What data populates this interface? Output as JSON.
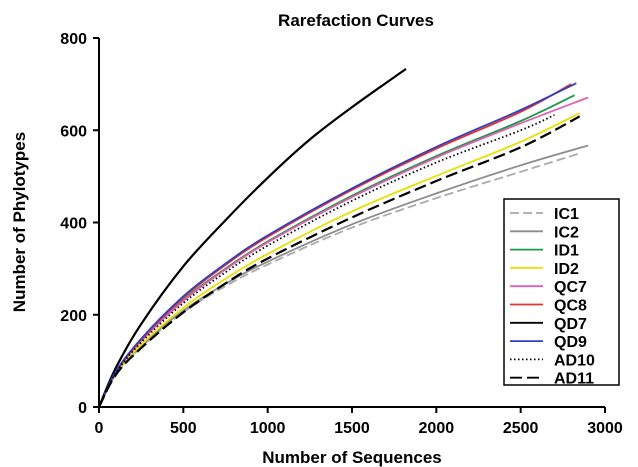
{
  "chart_data": {
    "type": "line",
    "title": "Rarefaction Curves",
    "xlabel": "Number of Sequences",
    "ylabel": "Number of Phylotypes",
    "xlim": [
      0,
      3000
    ],
    "ylim": [
      0,
      800
    ],
    "xticks": [
      0,
      500,
      1000,
      1500,
      2000,
      2500,
      3000
    ],
    "yticks": [
      0,
      200,
      400,
      600,
      800
    ],
    "grid": false,
    "legend": "right",
    "series": [
      {
        "name": "IC1",
        "color": "#aaaaaa",
        "dash": "dashed",
        "x": [
          0,
          100,
          250,
          500,
          750,
          1000,
          1500,
          2000,
          2500,
          2850
        ],
        "y": [
          0,
          70,
          130,
          205,
          262,
          309,
          389,
          453,
          510,
          550
        ]
      },
      {
        "name": "IC2",
        "color": "#8c8c8c",
        "dash": "solid",
        "x": [
          0,
          100,
          250,
          500,
          750,
          1000,
          1500,
          2000,
          2500,
          2900
        ],
        "y": [
          0,
          72,
          133,
          209,
          267,
          315,
          396,
          463,
          524,
          567
        ]
      },
      {
        "name": "ID1",
        "color": "#1a9a4a",
        "dash": "solid",
        "x": [
          0,
          100,
          250,
          500,
          750,
          1000,
          1500,
          2000,
          2500,
          2820
        ],
        "y": [
          0,
          75,
          143,
          232,
          300,
          359,
          458,
          544,
          620,
          676
        ]
      },
      {
        "name": "ID2",
        "color": "#e8e000",
        "dash": "solid",
        "x": [
          0,
          100,
          250,
          500,
          750,
          1000,
          1500,
          2000,
          2500,
          2850
        ],
        "y": [
          0,
          72,
          135,
          215,
          278,
          332,
          424,
          501,
          575,
          637
        ]
      },
      {
        "name": "QC7",
        "color": "#e060b0",
        "dash": "solid",
        "x": [
          0,
          100,
          250,
          500,
          750,
          1000,
          1500,
          2000,
          2500,
          2900
        ],
        "y": [
          0,
          75,
          143,
          230,
          298,
          357,
          455,
          541,
          615,
          671
        ]
      },
      {
        "name": "QC8",
        "color": "#e83030",
        "dash": "solid",
        "x": [
          0,
          100,
          250,
          500,
          750,
          1000,
          1500,
          2000,
          2500,
          2800
        ],
        "y": [
          0,
          76,
          146,
          237,
          308,
          369,
          471,
          560,
          640,
          700
        ]
      },
      {
        "name": "QD7",
        "color": "#000000",
        "dash": "solid",
        "x": [
          0,
          100,
          250,
          500,
          750,
          1000,
          1250,
          1500,
          1820
        ],
        "y": [
          0,
          85,
          180,
          305,
          405,
          497,
          580,
          650,
          733
        ]
      },
      {
        "name": "QD9",
        "color": "#3040c0",
        "dash": "solid",
        "x": [
          0,
          100,
          250,
          500,
          750,
          1000,
          1500,
          2000,
          2500,
          2830
        ],
        "y": [
          0,
          77,
          148,
          240,
          311,
          372,
          474,
          564,
          644,
          702
        ]
      },
      {
        "name": "AD10",
        "color": "#000000",
        "dash": "dotted",
        "x": [
          0,
          100,
          250,
          500,
          750,
          1000,
          1500,
          2000,
          2500,
          2700
        ],
        "y": [
          0,
          74,
          140,
          225,
          292,
          350,
          447,
          530,
          600,
          633
        ]
      },
      {
        "name": "AD11",
        "color": "#000000",
        "dash": "longdash",
        "x": [
          0,
          100,
          250,
          500,
          750,
          1000,
          1500,
          2000,
          2500,
          2850
        ],
        "y": [
          0,
          70,
          128,
          205,
          268,
          322,
          411,
          490,
          563,
          630
        ]
      }
    ]
  }
}
